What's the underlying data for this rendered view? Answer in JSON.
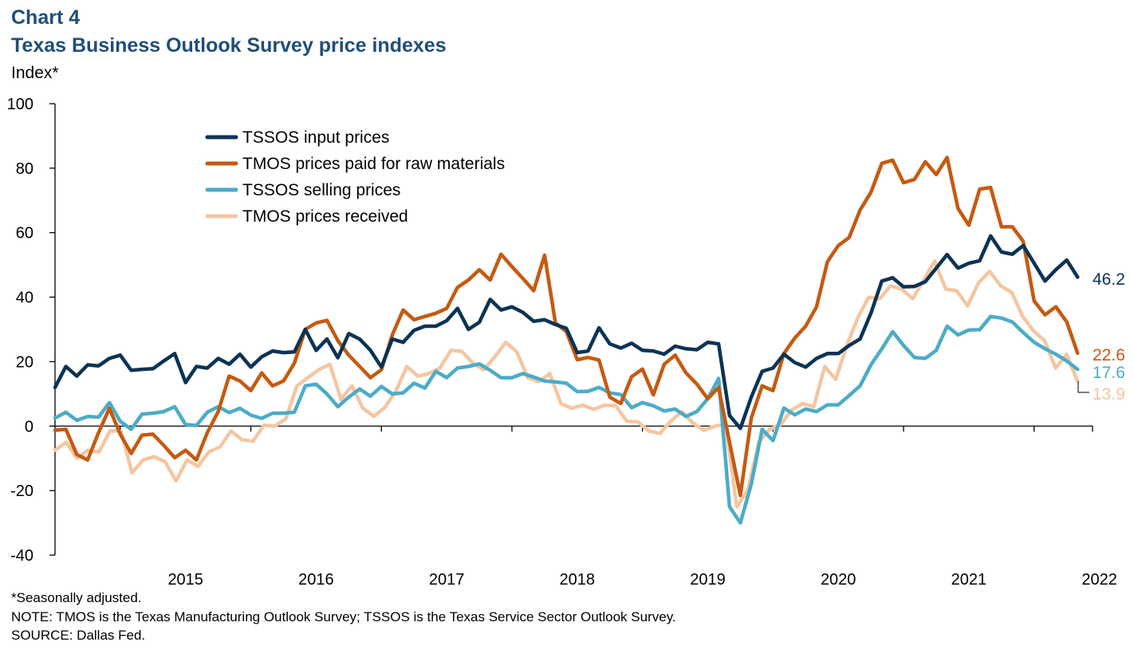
{
  "header": {
    "chart_number": "Chart 4",
    "title": "Texas Business Outlook Survey price indexes",
    "y_unit": "Index*"
  },
  "footer": {
    "note1": "*Seasonally adjusted.",
    "note2": "NOTE: TMOS is the Texas Manufacturing  Outlook Survey; TSSOS is the Texas Service Sector Outlook Survey.",
    "source": "SOURCE:  Dallas Fed."
  },
  "chart_data": {
    "type": "line",
    "title": "Texas Business Outlook Survey price indexes",
    "ylabel": "Index*",
    "ylim": [
      -40,
      100
    ],
    "yticks": [
      -40,
      -20,
      0,
      20,
      40,
      60,
      80,
      100
    ],
    "x_start": "2014-07",
    "x_end": "2022-05",
    "xtick_labels": [
      "2015",
      "2016",
      "2017",
      "2018",
      "2019",
      "2020",
      "2021",
      "2022"
    ],
    "legend_position": "top-left",
    "series": [
      {
        "name": "TSSOS input prices",
        "color": "#0b3354",
        "end_label": "46.2",
        "values": [
          12,
          18.5,
          15.5,
          19,
          18.7,
          21,
          22,
          17.3,
          17.6,
          17.8,
          20.2,
          22.5,
          13.5,
          18.5,
          18,
          21,
          19.2,
          22.3,
          18.3,
          21.5,
          23.3,
          22.8,
          23,
          30,
          23.5,
          27,
          21.2,
          28.7,
          27,
          23.5,
          18.3,
          27,
          26,
          29.7,
          31,
          31,
          32.7,
          36.5,
          30,
          32.2,
          39.3,
          36,
          37,
          35.3,
          32.5,
          33,
          31.5,
          30.3,
          22.8,
          23.3,
          30.5,
          25.5,
          24.2,
          25.7,
          23.5,
          23.3,
          22.3,
          24.8,
          24,
          23.7,
          26,
          25.5,
          3.3,
          -0.7,
          9,
          17,
          18,
          22.3,
          19.7,
          18.3,
          21,
          22.5,
          22.5,
          25,
          27,
          35,
          45,
          46,
          43.2,
          43.3,
          44.8,
          49,
          53.2,
          49,
          50.5,
          51.3,
          59,
          54,
          53.3,
          56,
          50.5,
          45,
          48.5,
          51.5,
          46.2
        ]
      },
      {
        "name": "TMOS prices paid for raw materials",
        "color": "#c55a11",
        "end_label": "22.6",
        "values": [
          -1.3,
          -1,
          -8.8,
          -10.5,
          -2,
          5.5,
          -2.5,
          -8.5,
          -2.8,
          -2.5,
          -6,
          -9.8,
          -7.5,
          -10.5,
          -2,
          4.5,
          15.5,
          14,
          11,
          16.5,
          12.5,
          14,
          19.5,
          30,
          32,
          32.8,
          26.5,
          22,
          18.5,
          15,
          17.5,
          28.3,
          36,
          33,
          34,
          35,
          36.5,
          43,
          45.3,
          48.5,
          45.3,
          53.3,
          49.5,
          45.8,
          42,
          53,
          32,
          29.3,
          20.6,
          21.3,
          20.5,
          9,
          7,
          15.3,
          17.7,
          9.7,
          19.2,
          22,
          16.5,
          13,
          8.5,
          12,
          -5,
          -21.5,
          2.5,
          12.5,
          11,
          22.5,
          27.3,
          31,
          37,
          51,
          56,
          58.5,
          67,
          72.5,
          81.5,
          82.5,
          75.5,
          76.5,
          82,
          78,
          83.3,
          67.5,
          62.3,
          73.5,
          74,
          61.8,
          61.8,
          57.3,
          38.8,
          34.5,
          37,
          32.3,
          22.6
        ]
      },
      {
        "name": "TSSOS selling prices",
        "color": "#4bacc6",
        "end_label": "17.6",
        "values": [
          2.5,
          4.3,
          1.8,
          3,
          2.8,
          7.3,
          1.5,
          -1,
          3.7,
          4,
          4.5,
          6,
          0.5,
          0.2,
          4.3,
          6,
          4.2,
          5.5,
          3.4,
          2.4,
          4,
          4,
          4.3,
          12.5,
          13,
          10,
          6,
          9,
          11.5,
          9.3,
          12.3,
          10,
          10.3,
          13.3,
          11.8,
          17,
          15,
          18,
          18.5,
          19.3,
          17.3,
          15,
          15,
          16.3,
          15.2,
          14,
          13.7,
          13.3,
          10.7,
          10.8,
          12,
          10.3,
          9.8,
          5.7,
          7.3,
          6.3,
          4.7,
          5.3,
          3,
          4.5,
          8.5,
          14.8,
          -25,
          -30,
          -18,
          -1,
          -4.5,
          5.6,
          3.5,
          5.3,
          4.5,
          6.6,
          6.6,
          9.5,
          12.5,
          19,
          24,
          29.3,
          25,
          21.3,
          21,
          23.5,
          31,
          28.3,
          29.8,
          29.9,
          34,
          33.5,
          32.3,
          29,
          26,
          24,
          22.3,
          20.2,
          17.6
        ]
      },
      {
        "name": "TMOS prices received",
        "color": "#f4c6a2",
        "end_label": "13.9",
        "values": [
          -7.5,
          -5,
          -10,
          -7.5,
          -8,
          -1.5,
          -1.5,
          -14.5,
          -10.5,
          -9.5,
          -11,
          -17,
          -10.5,
          -12.5,
          -8,
          -6.5,
          -1.5,
          -4.2,
          -4.7,
          0.3,
          0,
          2.3,
          12.5,
          15,
          17.5,
          19.2,
          8.3,
          12.5,
          5.5,
          3,
          5.8,
          10.8,
          18.5,
          15.5,
          16.3,
          18,
          23.5,
          23.2,
          19.5,
          17.5,
          21.5,
          26,
          23,
          15,
          13.8,
          16.3,
          7,
          5.5,
          6.5,
          5.2,
          6.5,
          6.3,
          1.5,
          1.3,
          -1.5,
          -2.3,
          1.5,
          4.5,
          1,
          -1.3,
          0,
          0.5,
          -25,
          -20,
          -5,
          -1,
          0.5,
          5,
          7,
          6,
          18.5,
          14.5,
          25,
          33.5,
          40,
          39.5,
          43.5,
          42.5,
          39.5,
          45.3,
          51.2,
          42.5,
          42,
          37.3,
          44.5,
          48,
          43.5,
          41.5,
          34,
          29.5,
          26.5,
          18,
          22.3,
          13.9
        ]
      }
    ]
  }
}
